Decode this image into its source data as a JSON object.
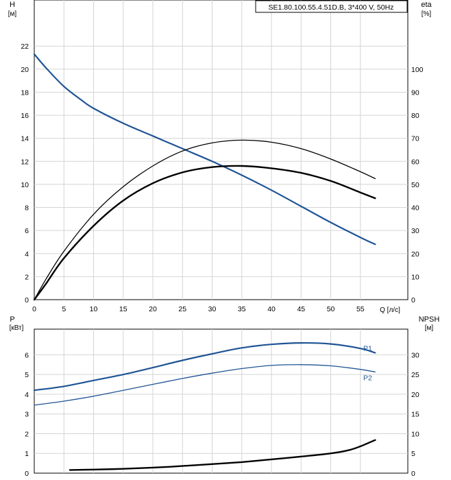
{
  "chart_data": [
    {
      "type": "line",
      "title": "SE1.80.100.55.4.51D.B, 3*400 V, 50Hz",
      "left_axis": {
        "label_top": "H",
        "label_unit": "[м]",
        "ylim": [
          0,
          26
        ],
        "ticks": [
          0,
          2,
          4,
          6,
          8,
          10,
          12,
          14,
          16,
          18,
          20,
          22
        ]
      },
      "right_axis": {
        "label_top": "eta",
        "label_unit": "[%]",
        "ylim": [
          0,
          130
        ],
        "ticks": [
          0,
          10,
          20,
          30,
          40,
          50,
          60,
          70,
          80,
          90,
          100
        ]
      },
      "x_axis": {
        "label": "Q [л/с]",
        "xlim": [
          0,
          63
        ],
        "ticks": [
          0,
          5,
          10,
          15,
          20,
          25,
          30,
          35,
          40,
          45,
          50,
          55
        ]
      },
      "grid": true,
      "series": [
        {
          "name": "",
          "axis": "left",
          "color": "#1f5494",
          "width": 2.2,
          "x": [
            0,
            2,
            5,
            8,
            10,
            15,
            20,
            25,
            30,
            35,
            40,
            45,
            50,
            55,
            57.5
          ],
          "y": [
            21.3,
            20.1,
            18.5,
            17.3,
            16.6,
            15.3,
            14.2,
            13.1,
            12.0,
            10.8,
            9.5,
            8.1,
            6.7,
            5.4,
            4.8
          ]
        },
        {
          "name": "",
          "axis": "right",
          "color": "#000000",
          "width": 1.3,
          "x": [
            0,
            2,
            5,
            10,
            15,
            20,
            25,
            30,
            35,
            40,
            45,
            50,
            55,
            57.5
          ],
          "y": [
            0,
            9,
            21,
            37,
            49,
            58,
            64.5,
            68,
            69.2,
            68.3,
            65.5,
            61,
            55.5,
            52.5
          ]
        },
        {
          "name": "",
          "axis": "right",
          "color": "#000000",
          "width": 2.4,
          "x": [
            0,
            2,
            5,
            10,
            15,
            20,
            25,
            30,
            35,
            40,
            45,
            50,
            55,
            57.5
          ],
          "y": [
            0,
            7,
            18,
            32,
            43,
            50.5,
            55.2,
            57.5,
            58,
            57,
            55,
            51.5,
            46.5,
            44
          ]
        }
      ]
    },
    {
      "type": "line",
      "title": "",
      "left_axis": {
        "label_top": "P",
        "label_unit": "[кВт]",
        "ylim": [
          0,
          7.3
        ],
        "ticks": [
          0,
          1,
          2,
          3,
          4,
          5,
          6
        ]
      },
      "right_axis": {
        "label_top": "NPSH",
        "label_unit": "[м]",
        "ylim": [
          0,
          36.5
        ],
        "ticks": [
          0,
          5,
          10,
          15,
          20,
          25,
          30
        ]
      },
      "x_axis": {
        "label": "",
        "xlim": [
          0,
          63
        ],
        "ticks": [
          0,
          5,
          10,
          15,
          20,
          25,
          30,
          35,
          40,
          45,
          50,
          55
        ]
      },
      "grid": true,
      "series": [
        {
          "name": "P1",
          "axis": "left",
          "color": "#1f5494",
          "width": 2.2,
          "x": [
            0,
            5,
            10,
            15,
            20,
            25,
            30,
            35,
            40,
            45,
            50,
            55,
            57.5
          ],
          "y": [
            4.2,
            4.4,
            4.7,
            5.0,
            5.35,
            5.72,
            6.05,
            6.35,
            6.53,
            6.6,
            6.55,
            6.32,
            6.1
          ]
        },
        {
          "name": "P2",
          "axis": "left",
          "color": "#1f5494",
          "width": 1.3,
          "x": [
            0,
            5,
            10,
            15,
            20,
            25,
            30,
            35,
            40,
            45,
            50,
            55,
            57.5
          ],
          "y": [
            3.45,
            3.65,
            3.9,
            4.2,
            4.5,
            4.8,
            5.07,
            5.3,
            5.46,
            5.5,
            5.44,
            5.26,
            5.13
          ]
        },
        {
          "name": "",
          "axis": "right",
          "color": "#000000",
          "width": 2.4,
          "x": [
            6,
            10,
            15,
            20,
            25,
            30,
            35,
            40,
            45,
            50,
            53,
            55,
            57.5
          ],
          "y": [
            0.8,
            0.9,
            1.1,
            1.4,
            1.8,
            2.3,
            2.8,
            3.5,
            4.2,
            5.0,
            5.8,
            6.8,
            8.4
          ]
        }
      ]
    }
  ]
}
